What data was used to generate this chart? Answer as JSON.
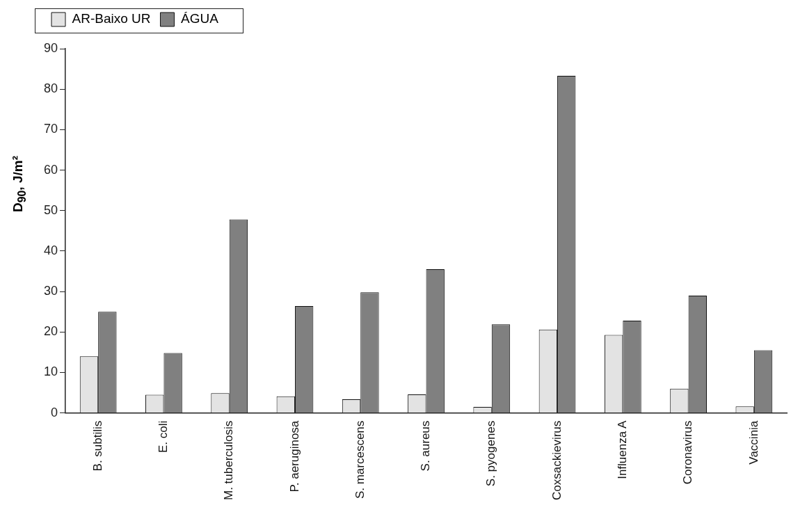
{
  "chart_data": {
    "type": "bar",
    "ylabel": "D$_{90}$, J/m²",
    "categories": [
      "B. subtilis",
      "E. coli",
      "M. tuberculosis",
      "P. aeruginosa",
      "S. marcescens",
      "S. aureus",
      "S. pyogenes",
      "Coxsackievirus",
      "Influenza A",
      "Coronavirus",
      "Vaccinia"
    ],
    "series": [
      {
        "name": "AR-Baixo UR",
        "color": "#e3e3e3",
        "values": [
          14.0,
          4.5,
          4.9,
          4.1,
          3.4,
          4.6,
          1.5,
          20.6,
          19.3,
          6.0,
          1.6
        ]
      },
      {
        "name": "ÁGUA",
        "color": "#808080",
        "values": [
          25.0,
          14.8,
          47.8,
          26.4,
          29.8,
          35.5,
          21.9,
          83.3,
          22.8,
          29.0,
          15.5
        ]
      }
    ],
    "ylim": [
      0,
      90
    ],
    "yticks": [
      0,
      10,
      20,
      30,
      40,
      50,
      60,
      70,
      80,
      90
    ],
    "grid": false,
    "legend": "top left"
  }
}
